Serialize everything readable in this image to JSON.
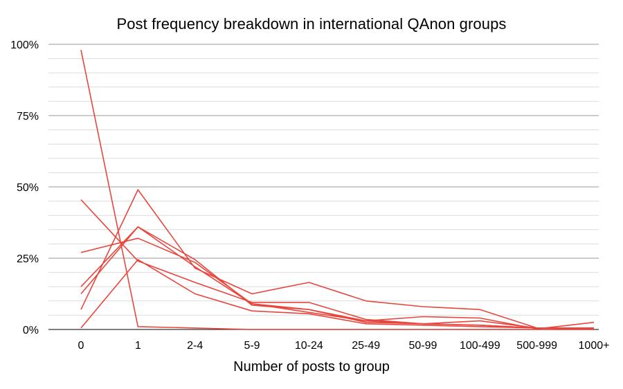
{
  "chart_data": {
    "type": "line",
    "title": "Post frequency breakdown in international QAnon groups",
    "xlabel": "Number of posts to group",
    "ylabel": "",
    "categories": [
      "0",
      "1",
      "2-4",
      "5-9",
      "10-24",
      "25-49",
      "50-99",
      "100-499",
      "500-999",
      "1000+"
    ],
    "yticks": [
      "100%",
      "75%",
      "50%",
      "25%",
      "0%"
    ],
    "ylim": [
      0,
      100
    ],
    "grid": true,
    "legend": "none",
    "line_color": "#e8453c",
    "series": [
      {
        "values": [
          98,
          1,
          0.5,
          0,
          0,
          0,
          0,
          0,
          0,
          0
        ]
      },
      {
        "values": [
          45.5,
          24,
          16.5,
          9.5,
          9.5,
          3.5,
          2,
          1.5,
          0.5,
          0
        ]
      },
      {
        "values": [
          27,
          32,
          23.5,
          9,
          6,
          3,
          2,
          1.5,
          0.5,
          0.3
        ]
      },
      {
        "values": [
          15,
          36,
          22,
          9,
          7,
          3,
          4.5,
          4,
          0.2,
          2.5
        ]
      },
      {
        "values": [
          12.5,
          36,
          24.5,
          8.5,
          7,
          2.5,
          2,
          3,
          0.5,
          0.5
        ]
      },
      {
        "values": [
          7,
          49,
          21.5,
          12.5,
          16.5,
          10,
          8,
          7,
          0.5,
          0.5
        ]
      },
      {
        "values": [
          0.5,
          24.5,
          12.5,
          6.5,
          5.5,
          2,
          1.5,
          1,
          0.5,
          0.5
        ]
      }
    ]
  }
}
